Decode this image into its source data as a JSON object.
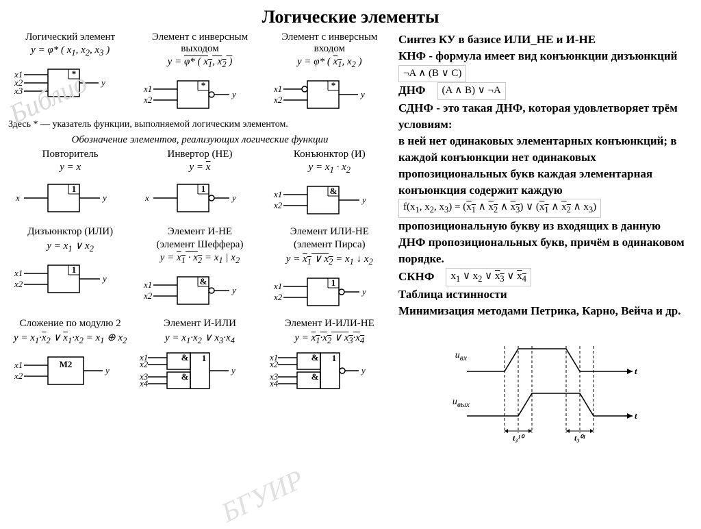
{
  "title": "Логические элементы",
  "watermark1": "Библио",
  "watermark2": "БГУИР",
  "top_row": [
    {
      "title": "Логический элемент",
      "formula_html": "y = φ* ( x<sub>1</sub>, x<sub>2</sub>, x<sub>3</sub> )",
      "svg_key": "gate3in"
    },
    {
      "title": "Элемент с инверсным выходом",
      "formula_html": "y = <span class='overline'>φ* ( x<sub>1</sub>, x<sub>2</sub> )</span>",
      "svg_key": "gate2invout"
    },
    {
      "title": "Элемент с инверсным входом",
      "formula_html": "y = φ* ( <span class='overline'>x<sub>1</sub></span>, x<sub>2</sub> )",
      "svg_key": "gate2invin"
    }
  ],
  "footnote": "Здесь * — указатель функции, выполняемой логическим элементом.",
  "section2_title": "Обозначение элементов, реализующих логические функции",
  "row2": [
    {
      "title": "Повторитель",
      "formula_html": "y = x",
      "svg_key": "repeater"
    },
    {
      "title": "Инвертор (НЕ)",
      "formula_html": "y = <span class='overline'>x</span>",
      "svg_key": "inverter"
    },
    {
      "title": "Конъюнктор (И)",
      "formula_html": "y = x<sub>1</sub> · x<sub>2</sub>",
      "svg_key": "and2"
    }
  ],
  "row3": [
    {
      "title": "Дизъюнктор (ИЛИ)",
      "sub": "",
      "formula_html": "y = x<sub>1</sub> ∨ x<sub>2</sub>",
      "svg_key": "or2"
    },
    {
      "title": "Элемент И-НЕ",
      "sub": "(элемент Шеффера)",
      "formula_html": "y = <span class='overline'>x<sub>1</sub> · x<sub>2</sub></span> = x<sub>1</sub> | x<sub>2</sub>",
      "svg_key": "nand2"
    },
    {
      "title": "Элемент ИЛИ-НЕ",
      "sub": "(элемент Пирса)",
      "formula_html": "y = <span class='overline'>x<sub>1</sub> ∨ x<sub>2</sub></span> = x<sub>1</sub> ↓ x<sub>2</sub>",
      "svg_key": "nor2"
    }
  ],
  "row4": [
    {
      "title": "Сложение по модулю 2",
      "formula_html": "y = x<sub>1</sub>·<span class='overline'>x</span><sub>2</sub> ∨ <span class='overline'>x</span><sub>1</sub>·x<sub>2</sub> = x<sub>1</sub> ⊕ x<sub>2</sub>",
      "svg_key": "xor2"
    },
    {
      "title": "Элемент И-ИЛИ",
      "formula_html": "y = x<sub>1</sub>·x<sub>2</sub> ∨ x<sub>3</sub>·x<sub>4</sub>",
      "svg_key": "andor"
    },
    {
      "title": "Элемент И-ИЛИ-НЕ",
      "formula_html": "y = <span class='overline'>x<sub>1</sub>·x<sub>2</sub> ∨ x<sub>3</sub>·x<sub>4</sub></span>",
      "svg_key": "andornot"
    }
  ],
  "right_text": {
    "l1": "Синтез КУ в базисе ИЛИ_НЕ и И-НЕ",
    "l2": "КНФ  - формула имеет вид конъюнкции дизъюнкций",
    "eq1": "¬A ∧ (B ∨ C)",
    "l3": "ДНФ",
    "eq2": "(A ∧ B) ∨ ¬A",
    "l4": "СДНФ - это такая ДНФ, которая удовлетворяет трём условиям:",
    "l5": "в ней нет одинаковых элементарных конъюнкций; в каждой конъюнкции нет одинаковых пропозициональных букв каждая элементарная конъюнкция содержит каждую",
    "eq3_html": "f(x<sub>1</sub>, x<sub>2</sub>, x<sub>3</sub>) = (<span class='overline'>x<sub>1</sub></span> ∧ <span class='overline'>x<sub>2</sub></span> ∧ <span class='overline'>x<sub>3</sub></span>) ∨ (<span class='overline'>x<sub>1</sub></span> ∧ <span class='overline'>x<sub>2</sub></span> ∧ x<sub>3</sub>)",
    "l6": "пропозициональную букву из входящих в данную ДНФ пропозициональных букв, причём в одинаковом порядке.",
    "l7": "СКНФ",
    "eq4_html": "x<sub>1</sub> ∨ x<sub>2</sub> ∨ <span class='overline'>x<sub>3</sub></span> ∨ <span class='overline'>x<sub>4</sub></span>",
    "l8": "Таблица истинности",
    "l9": "Минимизация методами Петрика, Карно, Вейча и др."
  },
  "timing": {
    "label_in": "u<sub>вх</sub>",
    "label_out": "u<sub>вых</sub>",
    "t_axis": "t",
    "t1": "t₃¹⁰",
    "t2": "t₃⁰¹"
  },
  "style": {
    "stroke": "#000000",
    "stroke_width": 1.5,
    "font": "italic 13px Times New Roman",
    "gate_w": 40,
    "gate_h": 42
  }
}
